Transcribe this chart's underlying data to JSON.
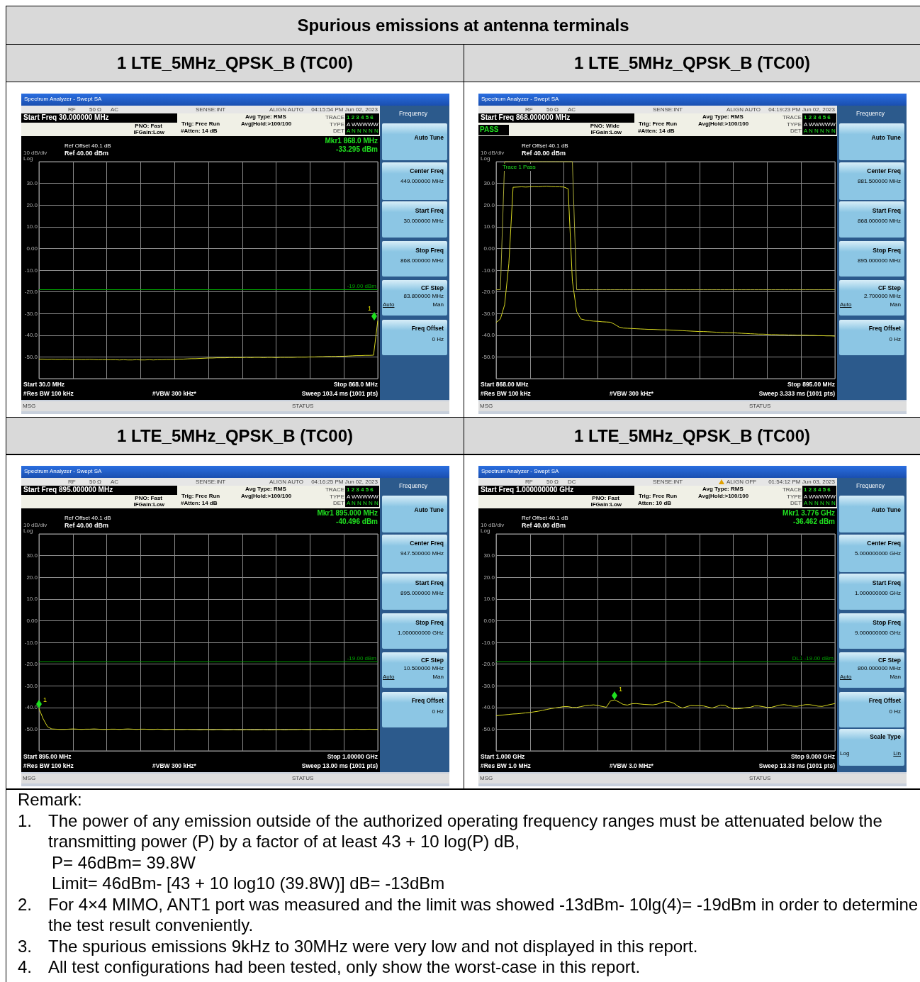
{
  "chart_data": [
    {
      "type": "other",
      "title": "Spurious emissions at antenna terminals"
    },
    {
      "type": "line",
      "title": "1 LTE_5MHz_QPSK_B (TC00)",
      "categories": [
        null,
        null,
        null,
        null,
        null,
        null,
        null,
        null,
        null,
        null,
        null,
        null,
        null,
        null,
        null,
        null,
        null,
        null,
        null,
        null,
        null,
        null,
        null,
        null,
        null,
        null,
        null,
        null,
        null,
        null,
        null,
        null,
        null,
        null,
        null,
        null,
        null,
        null,
        null,
        null,
        null,
        null,
        null,
        null,
        null,
        null,
        null,
        null,
        null,
        null,
        null,
        null,
        null,
        null,
        null,
        null,
        null,
        null,
        null,
        null,
        null,
        null,
        null,
        null,
        null,
        null,
        null,
        null,
        null,
        null,
        null,
        null,
        null,
        null,
        null,
        null,
        null,
        null,
        null,
        null,
        null
      ],
      "series": [
        {
          "color": "#d8d820",
          "values": [
            -51.0,
            -51.0,
            -51.1,
            -51.0,
            -51.1,
            -51.1,
            -51.0,
            -51.1,
            -51.2,
            -51.1,
            -51.2,
            -51.2,
            -51.1,
            -51.2,
            -51.3,
            -51.2,
            -51.3,
            -51.3,
            -51.3,
            -51.4,
            -51.3,
            -51.4,
            -51.4,
            -51.3,
            -51.4,
            -51.4,
            -51.3,
            -51.4,
            -51.3,
            -51.3,
            -51.2,
            -51.2,
            -51.1,
            -51.0,
            -51.0,
            -50.9,
            -50.8,
            -50.8,
            -50.7,
            -50.6,
            -50.5,
            -50.5,
            -50.4,
            -50.4,
            -50.4,
            -50.3,
            -50.3,
            -50.3,
            -50.3,
            -50.2,
            -50.3,
            -50.2,
            -50.2,
            -50.3,
            -50.2,
            -50.2,
            -50.3,
            -50.2,
            -50.2,
            -50.2,
            -50.2,
            -50.1,
            -50.1,
            -50.1,
            -50.0,
            -50.0,
            -49.9,
            -49.9,
            -49.8,
            -49.8,
            -49.8,
            -49.7,
            -49.7,
            -49.6,
            -49.5,
            -49.4,
            -49.4,
            -49.3,
            -49.3,
            -49.2,
            -33.3
          ]
        }
      ],
      "ylim": [
        -60,
        40
      ],
      "yticks": [
        {
          "value": 40,
          "label": null
        },
        {
          "value": 30,
          "label": "30.0"
        },
        {
          "value": 20,
          "label": "20.0"
        },
        {
          "value": 10,
          "label": "10.0"
        },
        {
          "value": 0,
          "label": "0.00"
        },
        {
          "value": -10,
          "label": "-10.0"
        },
        {
          "value": -20,
          "label": "-20.0"
        },
        {
          "value": -30,
          "label": "-30.0"
        },
        {
          "value": -40,
          "label": "-40.0"
        },
        {
          "value": -50,
          "label": "-50.0"
        },
        {
          "value": -60,
          "label": null
        }
      ],
      "tick_labels": "y",
      "grid": true,
      "marker": "none",
      "ref_lines": [
        {
          "axis": "y",
          "value": -19,
          "label": "-19.00 dBm",
          "color": "#00a000"
        }
      ],
      "annotations": [
        "Spectrum Analyzer - Swept SA",
        "RF",
        "50 Ω",
        "AC",
        "SENSE:INT",
        "ALIGN AUTO",
        "04:15:54 PM Jun 02, 2023",
        "Start Freq 30.000000 MHz",
        "PNO: Fast",
        "IFGain:Low",
        "Trig: Free Run",
        "#Atten: 14 dB",
        "Avg Type: RMS",
        "Avg|Hold:>100/100",
        "TRACE",
        "1 2 3 4 5 6",
        "TYPE",
        "A WWWWW",
        "DET",
        "A N N N N N",
        "Ref Offset 40.1 dB",
        "10 dB/div",
        "Ref 40.00 dBm",
        "Log",
        "Start 30.0 MHz",
        "Stop 868.0 MHz",
        "#Res BW 100 kHz",
        "#VBW 300 kHz*",
        "Sweep  103.4 ms (1001 pts)",
        "MSG",
        "STATUS",
        "Frequency",
        "Auto Tune",
        "Center Freq",
        "449.000000 MHz",
        "Start Freq",
        "30.000000 MHz",
        "Stop Freq",
        "868.000000 MHz",
        "CF Step",
        "83.800000 MHz",
        "Auto",
        "Man",
        "Freq Offset",
        "0 Hz",
        "Mkr1 868.0 MHz",
        "-33.295 dBm",
        "1"
      ]
    },
    {
      "type": "line",
      "title": "1 LTE_5MHz_QPSK_B (TC00)",
      "categories": [
        null,
        null,
        null,
        null,
        null,
        null,
        null,
        null,
        null,
        null,
        null,
        null,
        null,
        null,
        null,
        null,
        null,
        null,
        null,
        null,
        null,
        null,
        null,
        null,
        null,
        null,
        null,
        null,
        null,
        null,
        null,
        null,
        null,
        null,
        null,
        null,
        null,
        null,
        null,
        null,
        null,
        null,
        null,
        null,
        null,
        null,
        null,
        null,
        null,
        null,
        null,
        null,
        null,
        null,
        null,
        null,
        null,
        null,
        null,
        null,
        null,
        null,
        null,
        null,
        null,
        null,
        null,
        null,
        null,
        null,
        null,
        null,
        null,
        null,
        null,
        null,
        null,
        null,
        null,
        null,
        null
      ],
      "series": [
        {
          "color": "#d8d820",
          "values": [
            -34.1,
            -32.5,
            -26,
            -7,
            28.2,
            28.3,
            28.4,
            28.3,
            28.4,
            28.5,
            28.4,
            28.6,
            28.7,
            28.5,
            28.4,
            28.4,
            28.3,
            27.5,
            -15,
            -29,
            -32.5,
            -33.0,
            -33.3,
            -33.5,
            -33.6,
            -33.8,
            -33.9,
            -34.0,
            -35.0,
            -36.2,
            -36.7,
            -36.8,
            -36.9,
            -37.0,
            -37.1,
            -37.2,
            -37.3,
            -37.3,
            -37.4,
            -37.5,
            -37.5,
            -37.6,
            -37.7,
            -37.8,
            -37.9,
            -38.0,
            -38.1,
            -38.2,
            -38.3,
            -38.3,
            -38.4,
            -38.5,
            -38.6,
            -38.7,
            -38.8,
            -38.9,
            -38.9,
            -39.0,
            -39.1,
            -39.2,
            -39.3,
            -39.4,
            -39.5,
            -39.5,
            -39.6,
            -39.7,
            -39.7,
            -39.8,
            -39.8,
            -39.9,
            -39.9,
            -40.0,
            -40.0,
            -40.0,
            -40.1,
            -40.1,
            -40.2,
            -40.2,
            -40.3,
            -40.3,
            -40.4
          ]
        },
        {
          "color": "#a8a838",
          "values": [
            -19,
            -19,
            40,
            40,
            40,
            40,
            40,
            40,
            40,
            40,
            40,
            40,
            40,
            40,
            40,
            40,
            40,
            40,
            40,
            -19,
            -19,
            -19,
            -19,
            -19,
            -19,
            -19,
            -19,
            -19,
            -19,
            -19,
            -19,
            -19,
            -19,
            -19,
            -19,
            -19,
            -19,
            -19,
            -19,
            -19,
            -19,
            -19,
            -19,
            -19,
            -19,
            -19,
            -19,
            -19,
            -19,
            -19,
            -19,
            -19,
            -19,
            -19,
            -19,
            -19,
            -19,
            -19,
            -19,
            -19,
            -19,
            -19,
            -19,
            -19,
            -19,
            -19,
            -19,
            -19,
            -19,
            -19,
            -19,
            -19,
            -19,
            -19,
            -19,
            -19,
            -19,
            -19,
            -19,
            -19,
            -19
          ]
        }
      ],
      "ylim": [
        -60,
        40
      ],
      "yticks": [
        {
          "value": 40,
          "label": null
        },
        {
          "value": 30,
          "label": "30.0"
        },
        {
          "value": 20,
          "label": "20.0"
        },
        {
          "value": 10,
          "label": "10.0"
        },
        {
          "value": 0,
          "label": "0.00"
        },
        {
          "value": -10,
          "label": "-10.0"
        },
        {
          "value": -20,
          "label": "-20.0"
        },
        {
          "value": -30,
          "label": "-30.0"
        },
        {
          "value": -40,
          "label": "-40.0"
        },
        {
          "value": -50,
          "label": "-50.0"
        },
        {
          "value": -60,
          "label": null
        }
      ],
      "tick_labels": "y",
      "grid": true,
      "marker": "none",
      "annotations": [
        "Spectrum Analyzer - Swept SA",
        "RF",
        "50 Ω",
        "AC",
        "SENSE:INT",
        "ALIGN AUTO",
        "04:19:23 PM Jun 02, 2023",
        "Start Freq 868.000000 MHz",
        "PNO: Wide",
        "IFGain:Low",
        "Trig: Free Run",
        "#Atten: 14 dB",
        "Avg Type: RMS",
        "Avg|Hold:>100/100",
        "TRACE",
        "1 2 3 4 5 6",
        "TYPE",
        "A WWWWW",
        "DET",
        "A N N N N N",
        "Ref Offset 40.1 dB",
        "10 dB/div",
        "Ref 40.00 dBm",
        "Log",
        "Start 868.00 MHz",
        "Stop 895.00 MHz",
        "#Res BW 100 kHz",
        "#VBW 300 kHz*",
        "Sweep  3.333 ms (1001 pts)",
        "MSG",
        "STATUS",
        "Frequency",
        "Auto Tune",
        "Center Freq",
        "881.500000 MHz",
        "Start Freq",
        "868.000000 MHz",
        "Stop Freq",
        "895.000000 MHz",
        "CF Step",
        "2.700000 MHz",
        "Auto",
        "Man",
        "Freq Offset",
        "0 Hz",
        "PASS",
        "Trace 1 Pass"
      ]
    },
    {
      "type": "line",
      "title": "1 LTE_5MHz_QPSK_B (TC00)",
      "categories": [
        null,
        null,
        null,
        null,
        null,
        null,
        null,
        null,
        null,
        null,
        null,
        null,
        null,
        null,
        null,
        null,
        null,
        null,
        null,
        null,
        null,
        null,
        null,
        null,
        null,
        null,
        null,
        null,
        null,
        null,
        null,
        null,
        null,
        null,
        null,
        null,
        null,
        null,
        null,
        null,
        null,
        null,
        null,
        null,
        null,
        null,
        null,
        null,
        null,
        null,
        null,
        null,
        null,
        null,
        null,
        null,
        null,
        null,
        null,
        null,
        null,
        null,
        null,
        null,
        null,
        null,
        null,
        null,
        null,
        null,
        null,
        null,
        null,
        null,
        null,
        null,
        null,
        null,
        null,
        null,
        null
      ],
      "series": [
        {
          "color": "#d8d820",
          "values": [
            -40.5,
            -45.3,
            -48.8,
            -49.9,
            -50.0,
            -50.1,
            -50.1,
            -50.0,
            -49.9,
            -50.0,
            -50.1,
            -50.0,
            -50.0,
            -49.9,
            -50.0,
            -50.1,
            -50.1,
            -50.0,
            -50.0,
            -50.1,
            -50.0,
            -49.9,
            -50.0,
            -50.1,
            -50.0,
            -50.0,
            -50.1,
            -50.1,
            -50.0,
            -50.1,
            -50.2,
            -50.1,
            -50.1,
            -50.2,
            -50.2,
            -50.1,
            -50.2,
            -50.2,
            -50.3,
            -50.2,
            -50.2,
            -50.3,
            -50.2,
            -50.2,
            -50.3,
            -50.3,
            -50.2,
            -50.3,
            -50.3,
            -50.2,
            -50.3,
            -50.3,
            -50.3,
            -50.2,
            -50.3,
            -50.3,
            -50.2,
            -50.2,
            -50.3,
            -50.2,
            -50.2,
            -50.2,
            -50.1,
            -50.2,
            -50.2,
            -50.1,
            -50.2,
            -50.1,
            -50.1,
            -50.2,
            -50.1,
            -50.1,
            -50.2,
            -50.1,
            -50.1,
            -50.0,
            -50.1,
            -50.1,
            -50.0,
            -50.1,
            -50.1
          ]
        }
      ],
      "ylim": [
        -60,
        40
      ],
      "yticks": [
        {
          "value": 40,
          "label": null
        },
        {
          "value": 30,
          "label": "30.0"
        },
        {
          "value": 20,
          "label": "20.0"
        },
        {
          "value": 10,
          "label": "10.0"
        },
        {
          "value": 0,
          "label": "0.00"
        },
        {
          "value": -10,
          "label": "-10.0"
        },
        {
          "value": -20,
          "label": "-20.0"
        },
        {
          "value": -30,
          "label": "-30.0"
        },
        {
          "value": -40,
          "label": "-40.0"
        },
        {
          "value": -50,
          "label": "-50.0"
        },
        {
          "value": -60,
          "label": null
        }
      ],
      "tick_labels": "y",
      "grid": true,
      "marker": "none",
      "ref_lines": [
        {
          "axis": "y",
          "value": -19,
          "label": "-19.00 dBm",
          "color": "#00a000"
        }
      ],
      "annotations": [
        "Spectrum Analyzer - Swept SA",
        "RF",
        "50 Ω",
        "AC",
        "SENSE:INT",
        "ALIGN AUTO",
        "04:16:25 PM Jun 02, 2023",
        "Start Freq 895.000000 MHz",
        "PNO: Fast",
        "IFGain:Low",
        "Trig: Free Run",
        "#Atten: 14 dB",
        "Avg Type: RMS",
        "Avg|Hold:>100/100",
        "TRACE",
        "1 2 3 4 5 6",
        "TYPE",
        "A WWWWW",
        "DET",
        "A N N N N N",
        "Ref Offset 40.1 dB",
        "10 dB/div",
        "Ref 40.00 dBm",
        "Log",
        "Start 895.00 MHz",
        "Stop 1.00000 GHz",
        "#Res BW 100 kHz",
        "#VBW 300 kHz*",
        "Sweep  13.00 ms (1001 pts)",
        "MSG",
        "STATUS",
        "Frequency",
        "Auto Tune",
        "Center Freq",
        "947.500000 MHz",
        "Start Freq",
        "895.000000 MHz",
        "Stop Freq",
        "1.000000000 GHz",
        "CF Step",
        "10.500000 MHz",
        "Auto",
        "Man",
        "Freq Offset",
        "0 Hz",
        "Mkr1 895.000 MHz",
        "-40.496 dBm",
        "1"
      ]
    },
    {
      "type": "line",
      "title": "1 LTE_5MHz_QPSK_B (TC00)",
      "categories": [
        null,
        null,
        null,
        null,
        null,
        null,
        null,
        null,
        null,
        null,
        null,
        null,
        null,
        null,
        null,
        null,
        null,
        null,
        null,
        null,
        null,
        null,
        null,
        null,
        null,
        null,
        null,
        null,
        null,
        null,
        null,
        null,
        null,
        null,
        null,
        null,
        null,
        null,
        null,
        null,
        null,
        null,
        null,
        null,
        null,
        null,
        null,
        null,
        null,
        null,
        null,
        null,
        null,
        null,
        null,
        null,
        null,
        null,
        null,
        null,
        null,
        null,
        null,
        null,
        null,
        null,
        null,
        null,
        null,
        null,
        null,
        null,
        null,
        null,
        null,
        null,
        null,
        null,
        null,
        null,
        null
      ],
      "series": [
        {
          "color": "#d8d820",
          "values": [
            -43.8,
            -43.6,
            -43.4,
            -43.2,
            -43.0,
            -42.9,
            -42.7,
            -42.5,
            -42.3,
            -42.0,
            -41.7,
            -41.3,
            -40.9,
            -40.5,
            -40.2,
            -39.9,
            -39.6,
            -39.6,
            -40.0,
            -40.0,
            -39.6,
            -39.2,
            -39.0,
            -38.8,
            -39.1,
            -39.5,
            -39.9,
            -37.0,
            -36.5,
            -37.5,
            -38.6,
            -38.9,
            -38.3,
            -38.2,
            -38.4,
            -38.6,
            -38.7,
            -38.8,
            -38.5,
            -37.8,
            -37.2,
            -37.4,
            -38.1,
            -39.5,
            -40.3,
            -39.6,
            -39.1,
            -39.2,
            -39.2,
            -39.3,
            -39.8,
            -40.3,
            -39.6,
            -38.9,
            -39.0,
            -40.0,
            -40.6,
            -40.6,
            -40.4,
            -40.1,
            -39.9,
            -39.3,
            -39.3,
            -39.6,
            -40.0,
            -39.9,
            -39.4,
            -38.9,
            -38.7,
            -39.0,
            -39.4,
            -39.5,
            -39.1,
            -38.7,
            -38.7,
            -39.0,
            -39.4,
            -39.5,
            -39.0,
            -38.6,
            -38.2
          ]
        }
      ],
      "ylim": [
        -60,
        40
      ],
      "yticks": [
        {
          "value": 40,
          "label": null
        },
        {
          "value": 30,
          "label": "30.0"
        },
        {
          "value": 20,
          "label": "20.0"
        },
        {
          "value": 10,
          "label": "10.0"
        },
        {
          "value": 0,
          "label": "0.00"
        },
        {
          "value": -10,
          "label": "-10.0"
        },
        {
          "value": -20,
          "label": "-20.0"
        },
        {
          "value": -30,
          "label": "-30.0"
        },
        {
          "value": -40,
          "label": "-40.0"
        },
        {
          "value": -50,
          "label": "-50.0"
        },
        {
          "value": -60,
          "label": null
        }
      ],
      "tick_labels": "y",
      "grid": true,
      "marker": "none",
      "ref_lines": [
        {
          "axis": "y",
          "value": -19,
          "label": "DL1 -19.00 dBm",
          "color": "#00a000"
        }
      ],
      "annotations": [
        "Spectrum Analyzer - Swept SA",
        "RF",
        "50 Ω",
        "DC",
        "SENSE:INT",
        "ALIGN OFF",
        "01:54:12 PM Jun 03, 2023",
        "Start Freq 1.000000000 GHz",
        "PNO: Fast",
        "IFGain:Low",
        "Trig: Free Run",
        "Atten: 10 dB",
        "Avg Type: RMS",
        "Avg|Hold:>100/100",
        "TRACE",
        "1 2 3 4 5 6",
        "TYPE",
        "A WWWWW",
        "DET",
        "A N N N N N",
        "Ref Offset 40.1 dB",
        "10 dB/div",
        "Ref 40.00 dBm",
        "Log",
        "Start 1.000 GHz",
        "Stop 9.000 GHz",
        "#Res BW 1.0 MHz",
        "#VBW 3.0 MHz*",
        "Sweep  13.33 ms (1001 pts)",
        "MSG",
        "STATUS",
        "Frequency",
        "Auto Tune",
        "Center Freq",
        "5.000000000 GHz",
        "Start Freq",
        "1.000000000 GHz",
        "Stop Freq",
        "9.000000000 GHz",
        "CF Step",
        "800.000000 MHz",
        "Auto",
        "Man",
        "Freq Offset",
        "0 Hz",
        "Mkr1 3.776 GHz",
        "-36.462 dBm",
        "Scale Type",
        "Log",
        "Lin",
        "1"
      ]
    },
    {
      "type": "other",
      "title": "Remark:",
      "annotations": [
        "1. The power of any emission outside of the authorized operating frequency ranges must be attenuated below the transmitting power (P) by a factor of at least 43 + 10 log(P) dB,",
        "P= 46dBm= 39.8W",
        "Limit= 46dBm- [43 + 10 log10 (39.8W)] dB= -13dBm",
        "2. For 4×4 MIMO, ANT1 port was measured and the limit was showed -13dBm- 10lg(4)= -19dBm in order to determine the test result conveniently.",
        "3. The spurious emissions 9kHz to 30MHz were very low and not displayed in this report.",
        "4. All test configurations had been tested, only show the worst-case in this report."
      ]
    }
  ]
}
